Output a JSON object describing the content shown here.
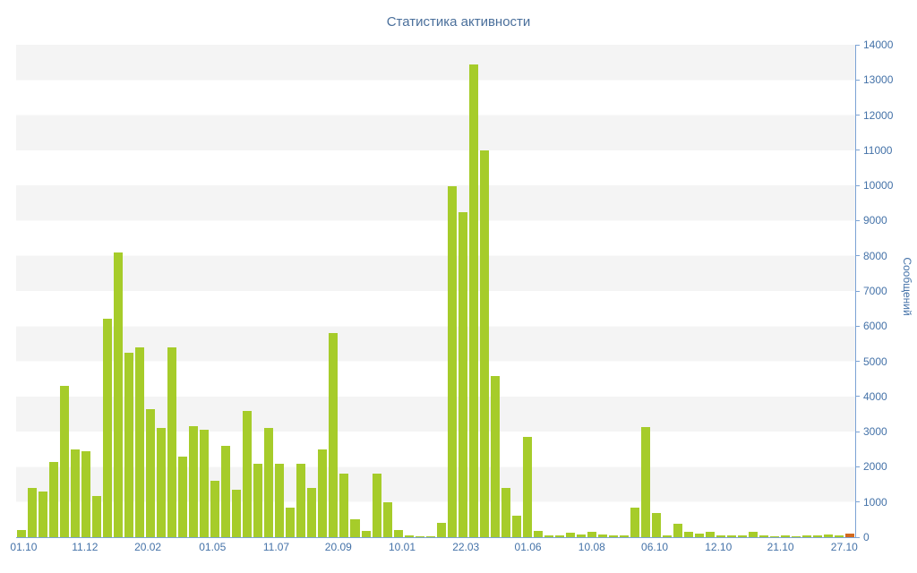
{
  "chart": {
    "title": "Статистика активности",
    "ylabel": "Сообщений"
  },
  "chart_data": {
    "type": "bar",
    "title": "Статистика активности",
    "xlabel": "",
    "ylabel": "Сообщений",
    "ylim": [
      0,
      14000
    ],
    "grid": "horizontal-bands",
    "legend": "none",
    "y_ticks": [
      0,
      1000,
      2000,
      3000,
      4000,
      5000,
      6000,
      7000,
      8000,
      9000,
      10000,
      11000,
      12000,
      13000,
      14000
    ],
    "x_ticks": [
      {
        "label": "01.10",
        "pos": 0.9
      },
      {
        "label": "11.12",
        "pos": 8.2
      },
      {
        "label": "20.02",
        "pos": 15.7
      },
      {
        "label": "01.05",
        "pos": 23.4
      },
      {
        "label": "11.07",
        "pos": 31.0
      },
      {
        "label": "20.09",
        "pos": 38.4
      },
      {
        "label": "10.01",
        "pos": 46.0
      },
      {
        "label": "22.03",
        "pos": 53.6
      },
      {
        "label": "01.06",
        "pos": 61.0
      },
      {
        "label": "10.08",
        "pos": 68.6
      },
      {
        "label": "06.10",
        "pos": 76.1
      },
      {
        "label": "12.10",
        "pos": 83.7
      },
      {
        "label": "21.10",
        "pos": 91.1
      },
      {
        "label": "27.10",
        "pos": 98.7
      }
    ],
    "values": [
      200,
      1400,
      1300,
      2150,
      4300,
      2500,
      2450,
      1170,
      6200,
      8100,
      5250,
      5400,
      3650,
      3100,
      5400,
      2300,
      3150,
      3050,
      1600,
      2600,
      1350,
      3600,
      2100,
      3100,
      2100,
      850,
      2100,
      1400,
      2500,
      5800,
      1800,
      500,
      180,
      1800,
      1000,
      200,
      50,
      30,
      30,
      420,
      9970,
      9230,
      13450,
      11000,
      4580,
      1400,
      620,
      2850,
      180,
      60,
      40,
      130,
      70,
      150,
      80,
      40,
      50,
      840,
      3130,
      700,
      60,
      380,
      150,
      100,
      160,
      60,
      40,
      50,
      160,
      40,
      30,
      50,
      30,
      40,
      60,
      80,
      50,
      100
    ],
    "colors": {
      "bar": "#a6cc2a",
      "last_bar": "#d2691e",
      "axis_text": "#4472a8",
      "axis_line": "#7ca3d4",
      "title": "#4a6f9b",
      "band": "#f4f4f4"
    }
  }
}
